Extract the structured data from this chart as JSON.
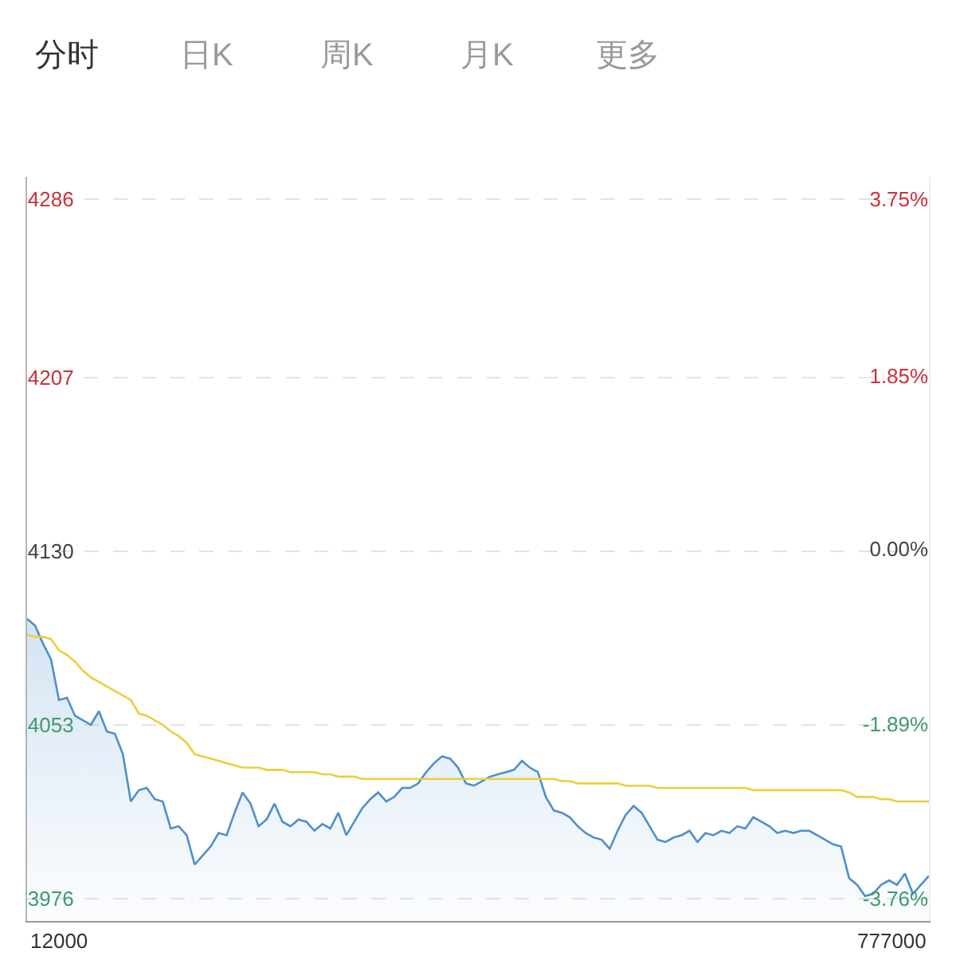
{
  "chart_data": {
    "type": "area",
    "annotations": [
      "分时",
      "日K",
      "周K",
      "月K",
      "更多",
      "12000",
      "777000"
    ],
    "categories": [
      null,
      null,
      null,
      null,
      null,
      null,
      null,
      null,
      null,
      null,
      null,
      null,
      null,
      null,
      null,
      null,
      null,
      null,
      null,
      null,
      null,
      null,
      null,
      null,
      null,
      null,
      null,
      null,
      null,
      null,
      null,
      null,
      null,
      null,
      null,
      null,
      null,
      null,
      null,
      null,
      null,
      null,
      null,
      null,
      null,
      null,
      null,
      null,
      null,
      null,
      null,
      null,
      null,
      null,
      null,
      null,
      null,
      null,
      null,
      null,
      null,
      null,
      null,
      null,
      null,
      null,
      null,
      null,
      null,
      null,
      null,
      null,
      null,
      null,
      null,
      null,
      null,
      null,
      null,
      null,
      null,
      null,
      null,
      null,
      null,
      null,
      null,
      null,
      null,
      null,
      null,
      null,
      null,
      null,
      null,
      null,
      null,
      null,
      null,
      null,
      null,
      null,
      null,
      null,
      null,
      null,
      null,
      null,
      null,
      null,
      null,
      null,
      null,
      null
    ],
    "series": [
      {
        "color": "#4d8fcc",
        "values": [
          4100,
          4097,
          4089,
          4082,
          4064,
          4065,
          4057,
          4055,
          4053,
          4059,
          4050,
          4049,
          4040,
          4019,
          4024,
          4025,
          4020,
          4019,
          4007,
          4008,
          4004,
          3991,
          3995,
          3999,
          4005,
          4004,
          4014,
          4023,
          4018,
          4008,
          4011,
          4018,
          4010,
          4008,
          4011,
          4010,
          4006,
          4009,
          4007,
          4014,
          4004,
          4010,
          4016,
          4020,
          4023,
          4019,
          4021,
          4025,
          4025,
          4027,
          4032,
          4036,
          4039,
          4038,
          4034,
          4027,
          4026,
          4028,
          4030,
          4031,
          4032,
          4033,
          4037,
          4034,
          4032,
          4021,
          4015,
          4014,
          4012,
          4008,
          4005,
          4003,
          4002,
          3998,
          4006,
          4013,
          4017,
          4014,
          4008,
          4002,
          4001,
          4003,
          4004,
          4006,
          4001,
          4005,
          4004,
          4006,
          4005,
          4008,
          4007,
          4012,
          4010,
          4008,
          4005,
          4006,
          4005,
          4006,
          4006,
          4004,
          4002,
          4000,
          3999,
          3985,
          3982,
          3977,
          3978,
          3982,
          3984,
          3982,
          3987,
          3978,
          3982,
          3986
        ]
      },
      {
        "type": "line",
        "color": "#eccf3a",
        "values": [
          4093,
          4092,
          4092,
          4091,
          4086,
          4084,
          4081,
          4077,
          4074,
          4072,
          4070,
          4068,
          4066,
          4064,
          4058,
          4057,
          4055,
          4053,
          4050,
          4048,
          4045,
          4040,
          4039,
          4038,
          4037,
          4036,
          4035,
          4034,
          4034,
          4034,
          4033,
          4033,
          4033,
          4032,
          4032,
          4032,
          4032,
          4031,
          4031,
          4030,
          4030,
          4030,
          4029,
          4029,
          4029,
          4029,
          4029,
          4029,
          4029,
          4029,
          4029,
          4029,
          4029,
          4029,
          4029,
          4029,
          4029,
          4029,
          4029,
          4029,
          4029,
          4029,
          4029,
          4029,
          4029,
          4029,
          4029,
          4028,
          4028,
          4027,
          4027,
          4027,
          4027,
          4027,
          4027,
          4026,
          4026,
          4026,
          4026,
          4025,
          4025,
          4025,
          4025,
          4025,
          4025,
          4025,
          4025,
          4025,
          4025,
          4025,
          4025,
          4024,
          4024,
          4024,
          4024,
          4024,
          4024,
          4024,
          4024,
          4024,
          4024,
          4024,
          4024,
          4023,
          4021,
          4021,
          4021,
          4020,
          4020,
          4019,
          4019,
          4019,
          4019,
          4019
        ]
      }
    ],
    "ylim": [
      3966,
      4296
    ],
    "yticks": [
      4286,
      4207,
      4130,
      4053,
      3976
    ],
    "y2lim": [
      -4.0,
      3.99
    ],
    "y2ticks": [
      {
        "value": 3.75,
        "label": "3.75%"
      },
      {
        "value": 1.85,
        "label": "1.85%"
      },
      {
        "value": 0,
        "label": "0.00%"
      },
      {
        "value": -1.89,
        "label": "-1.89%"
      },
      {
        "value": -3.76,
        "label": "-3.76%"
      }
    ],
    "grid": "y",
    "tick_labels": "y"
  }
}
